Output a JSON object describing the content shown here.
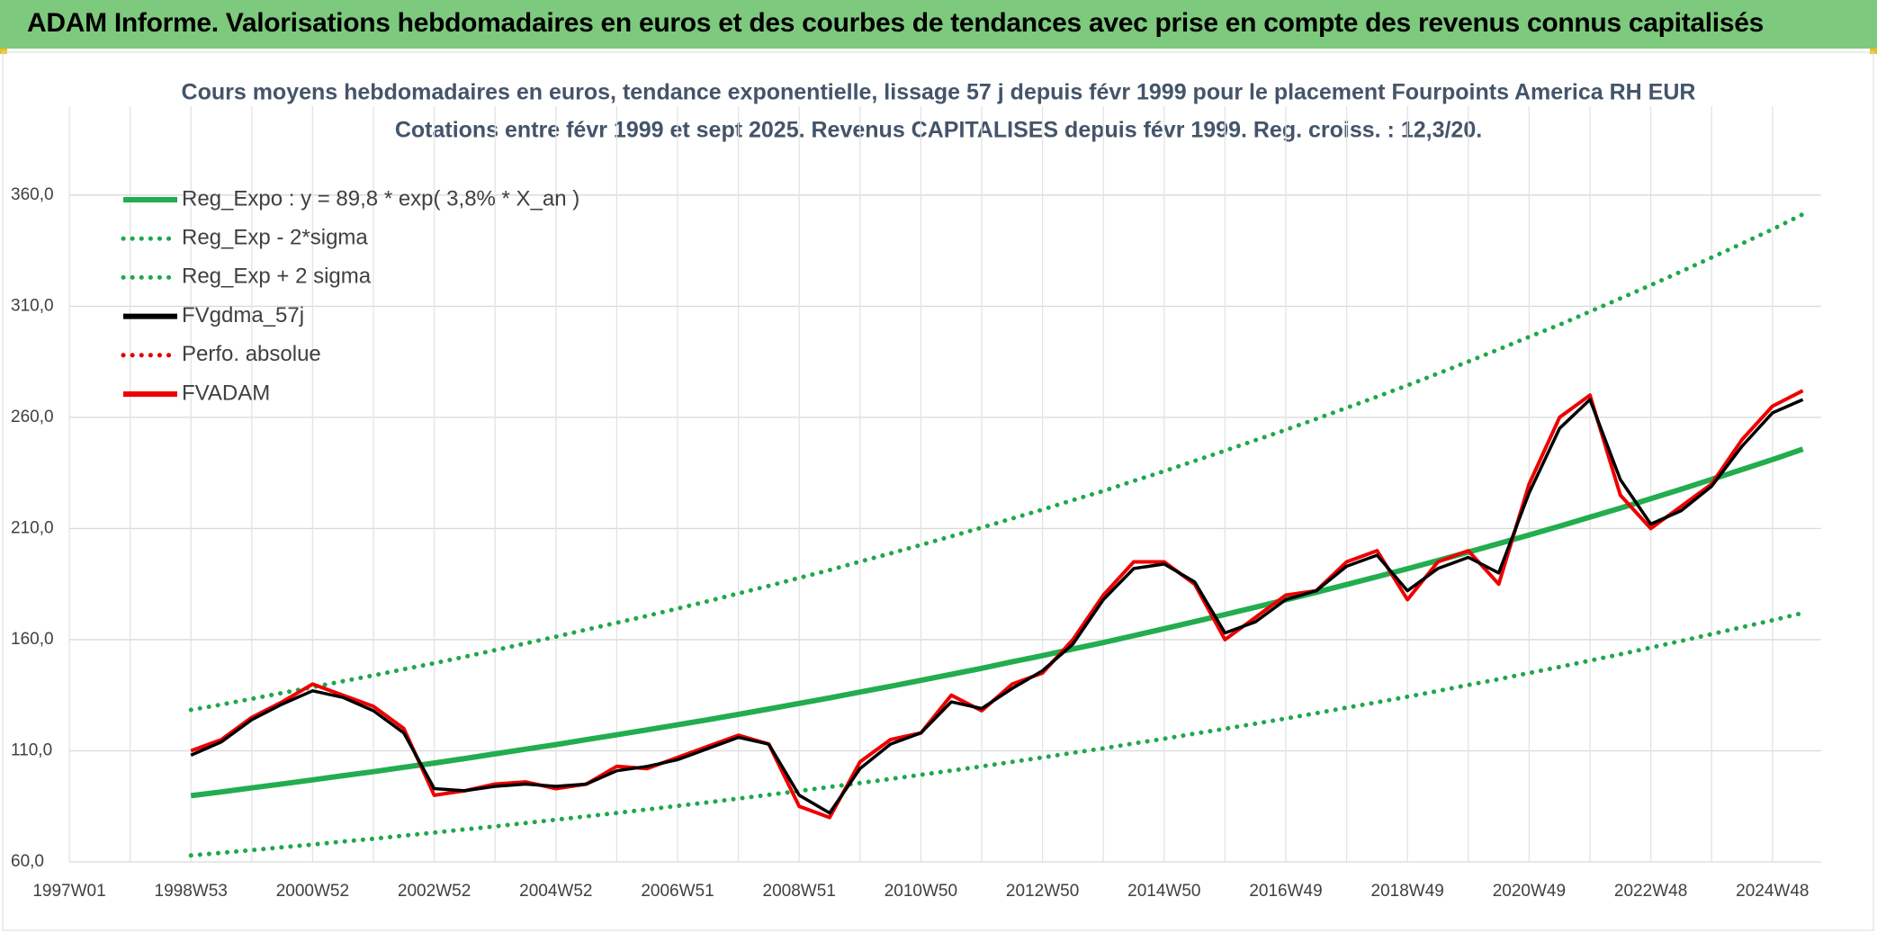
{
  "header": {
    "title": "ADAM Informe. Valorisations hebdomadaires en euros et des courbes de tendances avec prise en compte des revenus connus capitalisés"
  },
  "chart_data": {
    "type": "line",
    "title": "Cours moyens hebdomadaires en euros, tendance exponentielle, lissage 57 j depuis févr 1999 pour le placement Fourpoints America RH EUR",
    "subtitle": "Cotations entre févr 1999 et sept 2025. Revenus CAPITALISES depuis févr 1999. Reg. croiss. : 12,3/20.",
    "categories": [
      "1997W01",
      null,
      null,
      null,
      "1998W53",
      null,
      null,
      null,
      "2000W52",
      null,
      null,
      null,
      "2002W52",
      null,
      null,
      null,
      "2004W52",
      null,
      null,
      null,
      "2006W51",
      null,
      null,
      null,
      "2008W51",
      null,
      null,
      null,
      "2010W50",
      null,
      null,
      null,
      "2012W50",
      null,
      null,
      null,
      "2014W50",
      null,
      null,
      null,
      "2016W49",
      null,
      null,
      null,
      "2018W49",
      null,
      null,
      null,
      "2020W49",
      null,
      null,
      null,
      "2022W48",
      null,
      null,
      null,
      "2024W48",
      null
    ],
    "ylim": [
      60,
      400
    ],
    "yticks": [
      {
        "value": 60,
        "label": "60,0"
      },
      {
        "value": 110,
        "label": "110,0"
      },
      {
        "value": 160,
        "label": "160,0"
      },
      {
        "value": 210,
        "label": "210,0"
      },
      {
        "value": 260,
        "label": "260,0"
      },
      {
        "value": 310,
        "label": "310,0"
      },
      {
        "value": 360,
        "label": "360,0"
      }
    ],
    "grid": true,
    "legend": "top-left",
    "series": [
      {
        "name": "Reg_Expo : y = 89,8 * exp( 3,8% *  X_an )",
        "color": "#22ad4f",
        "style": "solid",
        "values": [
          null,
          null,
          null,
          null,
          89.8,
          91.5,
          93.3,
          95.1,
          96.9,
          98.8,
          100.6,
          102.6,
          104.5,
          106.5,
          108.6,
          110.7,
          112.8,
          115.0,
          117.2,
          119.4,
          121.7,
          124.0,
          126.4,
          128.8,
          131.3,
          133.8,
          136.4,
          139.0,
          141.7,
          144.4,
          147.1,
          150.0,
          152.8,
          155.8,
          158.7,
          161.8,
          164.9,
          168.1,
          171.3,
          174.6,
          177.9,
          181.3,
          184.8,
          188.3,
          191.9,
          195.6,
          199.4,
          203.2,
          207.1,
          211.0,
          215.1,
          219.2,
          223.4,
          227.7,
          232.1,
          236.5,
          241.0,
          245.7
        ]
      },
      {
        "name": "Reg_Exp - 2*sigma",
        "color": "#1ea84c",
        "style": "dotted",
        "values": [
          null,
          null,
          null,
          null,
          62.9,
          64.1,
          65.3,
          66.6,
          67.8,
          69.2,
          70.4,
          71.8,
          73.2,
          74.6,
          76.0,
          77.5,
          79.0,
          80.5,
          82.0,
          83.6,
          85.2,
          86.8,
          88.5,
          90.2,
          91.9,
          93.7,
          95.5,
          97.3,
          99.2,
          101.1,
          103.0,
          105.0,
          107.0,
          109.1,
          111.1,
          113.3,
          115.4,
          117.7,
          119.9,
          122.2,
          124.5,
          126.9,
          129.4,
          131.8,
          134.3,
          136.9,
          139.6,
          142.2,
          145.0,
          147.7,
          150.6,
          153.4,
          156.4,
          159.4,
          162.5,
          165.6,
          168.7,
          172.0
        ]
      },
      {
        "name": "Reg_Exp + 2 sigma",
        "color": "#1ea84c",
        "style": "dotted",
        "values": [
          null,
          null,
          null,
          null,
          128.4,
          130.8,
          133.4,
          136.0,
          138.6,
          141.3,
          143.9,
          146.7,
          149.4,
          152.3,
          155.3,
          158.3,
          161.3,
          164.5,
          167.6,
          170.7,
          174.0,
          177.3,
          180.8,
          184.2,
          187.8,
          191.3,
          195.1,
          198.8,
          202.6,
          206.5,
          210.4,
          214.5,
          218.5,
          222.8,
          226.9,
          231.4,
          235.8,
          240.4,
          245.0,
          249.7,
          254.4,
          259.3,
          264.3,
          269.3,
          274.4,
          279.7,
          285.1,
          290.6,
          296.2,
          301.7,
          307.6,
          313.5,
          319.5,
          325.6,
          331.9,
          338.2,
          344.6,
          351.4
        ]
      },
      {
        "name": "FVgdma_57j",
        "color": "#000000",
        "style": "solid",
        "values": [
          null,
          null,
          null,
          null,
          108,
          114,
          124,
          131,
          137,
          134,
          128,
          118,
          93,
          92,
          94,
          95,
          94,
          95,
          101,
          103,
          106,
          111,
          116,
          113,
          90,
          82,
          102,
          113,
          118,
          132,
          129,
          138,
          146,
          158,
          178,
          192,
          194,
          186,
          163,
          168,
          178,
          182,
          193,
          198,
          182,
          192,
          197,
          190,
          226,
          255,
          268,
          232,
          212,
          218,
          229,
          247,
          262,
          268
        ]
      },
      {
        "name": "Perfo. absolue",
        "color": "#e00000",
        "style": "dotted",
        "values": [
          null,
          null,
          null,
          null,
          null,
          null,
          null,
          null,
          null,
          null,
          null,
          null,
          null,
          null,
          null,
          null,
          null,
          null,
          null,
          null,
          null,
          null,
          null,
          null,
          null,
          null,
          null,
          null,
          null,
          null,
          null,
          null,
          null,
          null,
          null,
          null,
          null,
          null,
          null,
          null,
          null,
          null,
          null,
          null,
          null,
          null,
          null,
          null,
          null,
          null,
          null,
          null,
          null,
          null,
          null,
          null,
          null,
          null
        ]
      },
      {
        "name": "FVADAM",
        "color": "#ee0000",
        "style": "solid",
        "values": [
          null,
          null,
          null,
          null,
          110,
          115,
          125,
          132,
          140,
          135,
          130,
          120,
          90,
          92,
          95,
          96,
          93,
          95,
          103,
          102,
          107,
          112,
          117,
          113,
          85,
          80,
          105,
          115,
          118,
          135,
          128,
          140,
          145,
          160,
          180,
          195,
          195,
          185,
          160,
          170,
          180,
          182,
          195,
          200,
          178,
          195,
          200,
          185,
          230,
          260,
          270,
          225,
          210,
          220,
          230,
          250,
          265,
          272
        ]
      }
    ]
  }
}
